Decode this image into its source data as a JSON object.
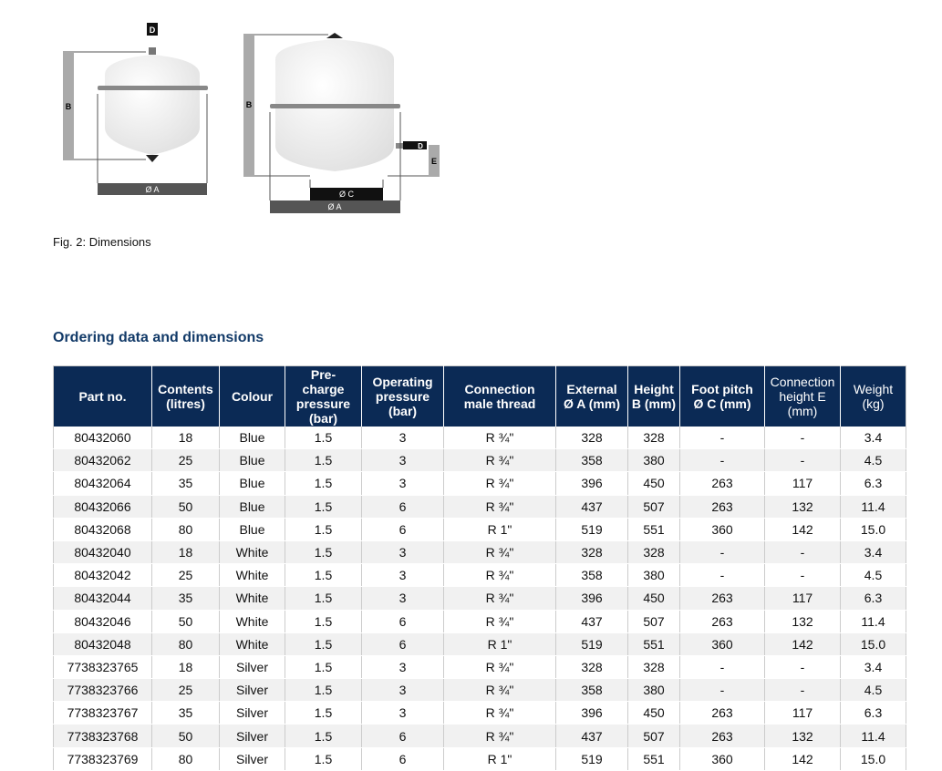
{
  "figure": {
    "caption": "Fig. 2: Dimensions",
    "labels": {
      "a": "Ø A",
      "b": "B",
      "c": "Ø C",
      "d": "D",
      "e": "E"
    }
  },
  "section_title": "Ordering data and dimensions",
  "table": {
    "headers": [
      [
        "Part no."
      ],
      [
        "Contents",
        "(litres)"
      ],
      [
        "Colour"
      ],
      [
        "Pre-",
        "charge",
        "pressure",
        "(bar)"
      ],
      [
        "Operating",
        "pressure",
        "(bar)"
      ],
      [
        "Connection",
        "male thread"
      ],
      [
        "External",
        "Ø A (mm)"
      ],
      [
        "Height",
        "B (mm)"
      ],
      [
        "Foot pitch",
        "Ø C (mm)"
      ],
      [
        "Connection",
        "height E",
        "(mm)"
      ],
      [
        "Weight",
        "(kg)"
      ]
    ],
    "rows": [
      [
        "80432060",
        "18",
        "Blue",
        "1.5",
        "3",
        "R ¾\"",
        "328",
        "328",
        "-",
        "-",
        "3.4"
      ],
      [
        "80432062",
        "25",
        "Blue",
        "1.5",
        "3",
        "R ¾\"",
        "358",
        "380",
        "-",
        "-",
        "4.5"
      ],
      [
        "80432064",
        "35",
        "Blue",
        "1.5",
        "3",
        "R ¾\"",
        "396",
        "450",
        "263",
        "117",
        "6.3"
      ],
      [
        "80432066",
        "50",
        "Blue",
        "1.5",
        "6",
        "R ¾\"",
        "437",
        "507",
        "263",
        "132",
        "11.4"
      ],
      [
        "80432068",
        "80",
        "Blue",
        "1.5",
        "6",
        "R 1\"",
        "519",
        "551",
        "360",
        "142",
        "15.0"
      ],
      [
        "80432040",
        "18",
        "White",
        "1.5",
        "3",
        "R ¾\"",
        "328",
        "328",
        "-",
        "-",
        "3.4"
      ],
      [
        "80432042",
        "25",
        "White",
        "1.5",
        "3",
        "R ¾\"",
        "358",
        "380",
        "-",
        "-",
        "4.5"
      ],
      [
        "80432044",
        "35",
        "White",
        "1.5",
        "3",
        "R ¾\"",
        "396",
        "450",
        "263",
        "117",
        "6.3"
      ],
      [
        "80432046",
        "50",
        "White",
        "1.5",
        "6",
        "R ¾\"",
        "437",
        "507",
        "263",
        "132",
        "11.4"
      ],
      [
        "80432048",
        "80",
        "White",
        "1.5",
        "6",
        "R 1\"",
        "519",
        "551",
        "360",
        "142",
        "15.0"
      ],
      [
        "7738323765",
        "18",
        "Silver",
        "1.5",
        "3",
        "R ¾\"",
        "328",
        "328",
        "-",
        "-",
        "3.4"
      ],
      [
        "7738323766",
        "25",
        "Silver",
        "1.5",
        "3",
        "R ¾\"",
        "358",
        "380",
        "-",
        "-",
        "4.5"
      ],
      [
        "7738323767",
        "35",
        "Silver",
        "1.5",
        "3",
        "R ¾\"",
        "396",
        "450",
        "263",
        "117",
        "6.3"
      ],
      [
        "7738323768",
        "50",
        "Silver",
        "1.5",
        "6",
        "R ¾\"",
        "437",
        "507",
        "263",
        "132",
        "11.4"
      ],
      [
        "7738323769",
        "80",
        "Silver",
        "1.5",
        "6",
        "R 1\"",
        "519",
        "551",
        "360",
        "142",
        "15.0"
      ]
    ]
  },
  "colors": {
    "header": "#0b2a55",
    "title": "#123a68"
  }
}
